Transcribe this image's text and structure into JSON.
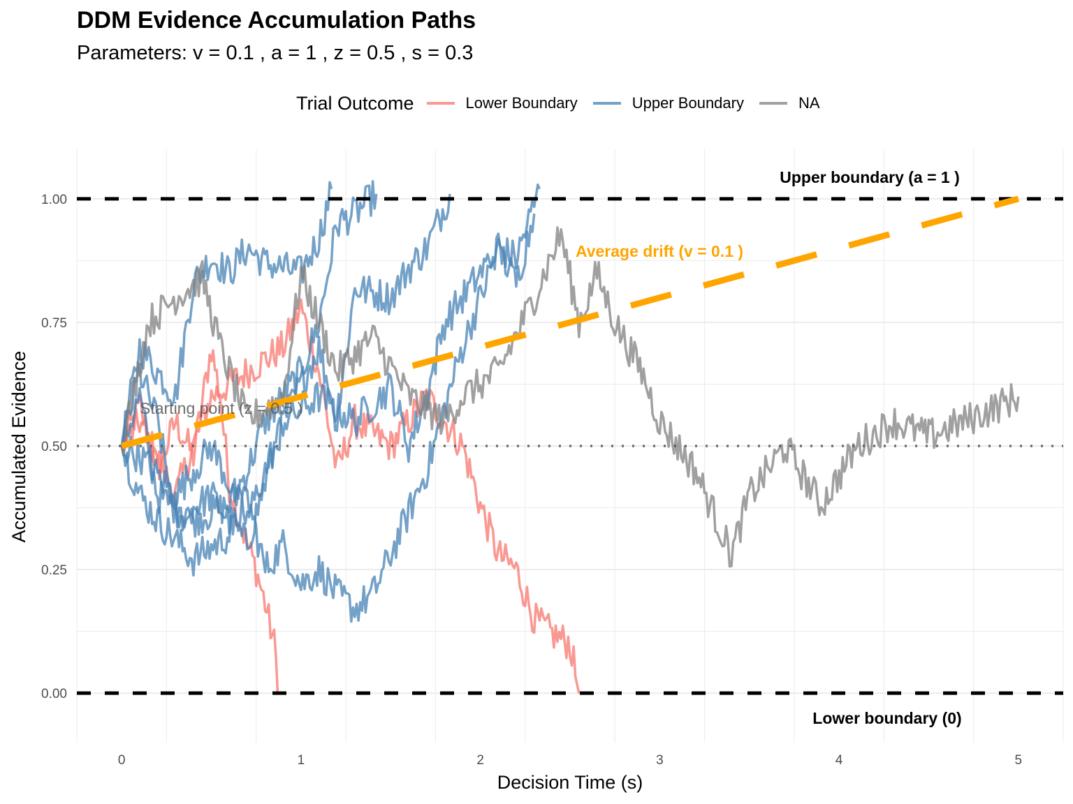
{
  "chart_data": {
    "type": "line",
    "title": "DDM Evidence Accumulation Paths",
    "subtitle": "Parameters: v = 0.1 , a = 1 , z = 0.5 , s = 0.3",
    "xlabel": "Decision Time (s)",
    "ylabel": "Accumulated Evidence",
    "xlim": [
      -0.25,
      5.25
    ],
    "ylim": [
      -0.1,
      1.1
    ],
    "x_ticks": [
      0,
      1,
      2,
      3,
      4,
      5
    ],
    "x_tick_labels": [
      "0",
      "1",
      "2",
      "3",
      "4",
      "5"
    ],
    "y_ticks": [
      0,
      0.25,
      0.5,
      0.75,
      1
    ],
    "y_tick_labels": [
      "0.00",
      "0.25",
      "0.50",
      "0.75",
      "1.00"
    ],
    "grid": true,
    "legend": {
      "title": "Trial Outcome",
      "position": "top",
      "entries": [
        {
          "label": "Lower Boundary",
          "color": "#F8766D"
        },
        {
          "label": "Upper Boundary",
          "color": "#4682B4"
        },
        {
          "label": "NA",
          "color": "#808080"
        }
      ]
    },
    "reference_lines": [
      {
        "name": "upper-boundary",
        "type": "hline",
        "y": 1,
        "style": "dashed",
        "color": "#000000"
      },
      {
        "name": "lower-boundary",
        "type": "hline",
        "y": 0,
        "style": "dashed",
        "color": "#000000"
      },
      {
        "name": "starting-point",
        "type": "hline",
        "y": 0.5,
        "style": "dotted",
        "color": "#555555"
      },
      {
        "name": "average-drift",
        "type": "segment",
        "x": [
          0,
          5
        ],
        "y": [
          0.5,
          1.0
        ],
        "style": "dashed",
        "color": "#FFA500"
      }
    ],
    "annotations": [
      {
        "text": "Upper boundary (a = 1 )",
        "x": 4.3,
        "y": 1.05,
        "color": "#000000"
      },
      {
        "text": "Lower boundary (0)",
        "x": 4.3,
        "y": -0.05,
        "color": "#000000"
      },
      {
        "text": "Average drift (v = 0.1 )",
        "x": 2.9,
        "y": 0.9,
        "color": "#FFA500"
      },
      {
        "text": "Starting point (z = 0.5 )",
        "x": 0.1,
        "y": 0.58,
        "color": "#555555"
      }
    ],
    "series": [
      {
        "name": "Lower Boundary",
        "trial": 1,
        "color": "#F8766D",
        "hit_time": 0.88,
        "x": [
          0,
          0.1,
          0.2,
          0.3,
          0.4,
          0.5,
          0.55,
          0.6,
          0.7,
          0.75,
          0.8,
          0.85,
          0.88
        ],
        "y": [
          0.5,
          0.58,
          0.45,
          0.55,
          0.48,
          0.7,
          0.6,
          0.42,
          0.3,
          0.25,
          0.18,
          0.1,
          0.0
        ]
      },
      {
        "name": "Lower Boundary",
        "trial": 2,
        "color": "#F8766D",
        "hit_time": 2.55,
        "x": [
          0,
          0.1,
          0.3,
          0.5,
          0.7,
          0.9,
          1.0,
          1.1,
          1.2,
          1.3,
          1.5,
          1.7,
          1.9,
          2.0,
          2.1,
          2.2,
          2.3,
          2.4,
          2.5,
          2.55
        ],
        "y": [
          0.5,
          0.55,
          0.4,
          0.6,
          0.65,
          0.7,
          0.78,
          0.65,
          0.45,
          0.55,
          0.5,
          0.6,
          0.5,
          0.38,
          0.28,
          0.25,
          0.15,
          0.12,
          0.1,
          0.0
        ]
      },
      {
        "name": "Upper Boundary",
        "trial": 3,
        "color": "#4682B4",
        "hit_time": 1.17,
        "x": [
          0,
          0.1,
          0.2,
          0.3,
          0.4,
          0.5,
          0.6,
          0.7,
          0.8,
          0.9,
          1.0,
          1.1,
          1.17
        ],
        "y": [
          0.5,
          0.7,
          0.65,
          0.6,
          0.83,
          0.88,
          0.85,
          0.9,
          0.87,
          0.86,
          0.85,
          0.92,
          1.02
        ]
      },
      {
        "name": "Upper Boundary",
        "trial": 4,
        "color": "#4682B4",
        "hit_time": 1.42,
        "x": [
          0,
          0.1,
          0.2,
          0.4,
          0.6,
          0.7,
          0.8,
          0.9,
          1.0,
          1.1,
          1.2,
          1.3,
          1.42
        ],
        "y": [
          0.5,
          0.6,
          0.4,
          0.35,
          0.38,
          0.45,
          0.55,
          0.6,
          0.65,
          0.75,
          0.95,
          0.97,
          1.01
        ]
      },
      {
        "name": "Upper Boundary",
        "trial": 5,
        "color": "#4682B4",
        "hit_time": 1.83,
        "x": [
          0,
          0.1,
          0.2,
          0.3,
          0.5,
          0.7,
          0.9,
          1.1,
          1.2,
          1.3,
          1.5,
          1.6,
          1.7,
          1.83
        ],
        "y": [
          0.5,
          0.65,
          0.55,
          0.35,
          0.4,
          0.3,
          0.55,
          0.7,
          0.55,
          0.82,
          0.8,
          0.86,
          0.9,
          1.01
        ]
      },
      {
        "name": "Upper Boundary",
        "trial": 6,
        "color": "#4682B4",
        "hit_time": 2.33,
        "x": [
          0,
          0.1,
          0.2,
          0.4,
          0.6,
          0.7,
          0.8,
          0.9,
          1.0,
          1.1,
          1.2,
          1.3,
          1.4,
          1.5,
          1.7,
          1.9,
          2.1,
          2.2,
          2.33
        ],
        "y": [
          0.5,
          0.4,
          0.35,
          0.27,
          0.32,
          0.4,
          0.25,
          0.3,
          0.22,
          0.25,
          0.2,
          0.17,
          0.2,
          0.28,
          0.45,
          0.7,
          0.9,
          0.88,
          1.02
        ]
      },
      {
        "name": "Upper Boundary",
        "trial": 7,
        "color": "#4682B4",
        "hit_time": 2.3,
        "x": [
          0,
          0.1,
          0.3,
          0.5,
          0.7,
          0.9,
          1.1,
          1.3,
          1.5,
          1.6,
          1.7,
          1.8,
          2.0,
          2.1,
          2.2,
          2.3
        ],
        "y": [
          0.5,
          0.48,
          0.4,
          0.5,
          0.35,
          0.55,
          0.6,
          0.55,
          0.62,
          0.5,
          0.6,
          0.75,
          0.85,
          0.9,
          0.83,
          0.97
        ]
      },
      {
        "name": "NA",
        "trial": 8,
        "color": "#808080",
        "hit_time": null,
        "x": [
          0,
          0.15,
          0.3,
          0.45,
          0.55,
          0.7,
          0.9,
          1.0,
          1.2,
          1.4,
          1.6,
          1.8,
          1.9,
          2.1,
          2.3,
          2.45,
          2.55,
          2.65,
          2.75,
          2.9,
          3.0,
          3.2,
          3.4,
          3.5,
          3.7,
          3.9,
          4.1,
          4.3,
          4.5,
          4.7,
          5.0
        ],
        "y": [
          0.5,
          0.75,
          0.8,
          0.84,
          0.7,
          0.55,
          0.6,
          0.85,
          0.65,
          0.72,
          0.6,
          0.55,
          0.6,
          0.65,
          0.8,
          0.93,
          0.75,
          0.85,
          0.75,
          0.65,
          0.55,
          0.45,
          0.28,
          0.4,
          0.5,
          0.38,
          0.5,
          0.55,
          0.52,
          0.55,
          0.6
        ]
      }
    ]
  }
}
